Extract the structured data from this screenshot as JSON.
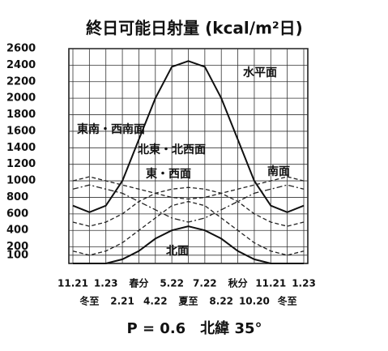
{
  "chart_data": {
    "type": "line",
    "title": "終日可能日射量 (kcal/m²日)",
    "categories": [
      "11.21",
      "冬至",
      "1.23",
      "2.21",
      "春分",
      "4.22",
      "5.22",
      "夏至",
      "7.22",
      "8.22",
      "秋分",
      "10.20",
      "11.21",
      "冬至",
      "1.23"
    ],
    "series": [
      {
        "name": "水平面",
        "color": "#111111",
        "style": "solid",
        "values": [
          700,
          620,
          700,
          1000,
          1500,
          2000,
          2380,
          2450,
          2380,
          2000,
          1500,
          1000,
          700,
          620,
          700
        ]
      },
      {
        "name": "東南・西南面",
        "color": "#222222",
        "style": "dashed",
        "values": [
          1000,
          1050,
          1000,
          950,
          900,
          850,
          800,
          780,
          800,
          850,
          900,
          950,
          1000,
          1050,
          1000
        ]
      },
      {
        "name": "北東・北西面",
        "color": "#222222",
        "style": "dashed",
        "values": [
          150,
          100,
          150,
          250,
          400,
          550,
          700,
          750,
          700,
          550,
          400,
          250,
          150,
          100,
          150
        ]
      },
      {
        "name": "東・西面",
        "color": "#222222",
        "style": "dashed",
        "values": [
          500,
          450,
          500,
          600,
          750,
          850,
          900,
          920,
          900,
          850,
          750,
          600,
          500,
          450,
          500
        ]
      },
      {
        "name": "南面",
        "color": "#222222",
        "style": "dashdot",
        "values": [
          900,
          950,
          900,
          850,
          750,
          650,
          550,
          500,
          550,
          650,
          750,
          850,
          900,
          950,
          900
        ]
      },
      {
        "name": "北面",
        "color": "#111111",
        "style": "solid",
        "values": [
          0,
          0,
          0,
          50,
          150,
          300,
          400,
          450,
          400,
          300,
          150,
          50,
          0,
          0,
          0
        ]
      }
    ],
    "ylim": [
      0,
      2600
    ],
    "yticks": [
      100,
      200,
      400,
      600,
      800,
      1000,
      1200,
      1400,
      1600,
      1800,
      2000,
      2200,
      2400,
      2600
    ],
    "grid": true,
    "footer": "P = 0.6　北緯 35°"
  }
}
